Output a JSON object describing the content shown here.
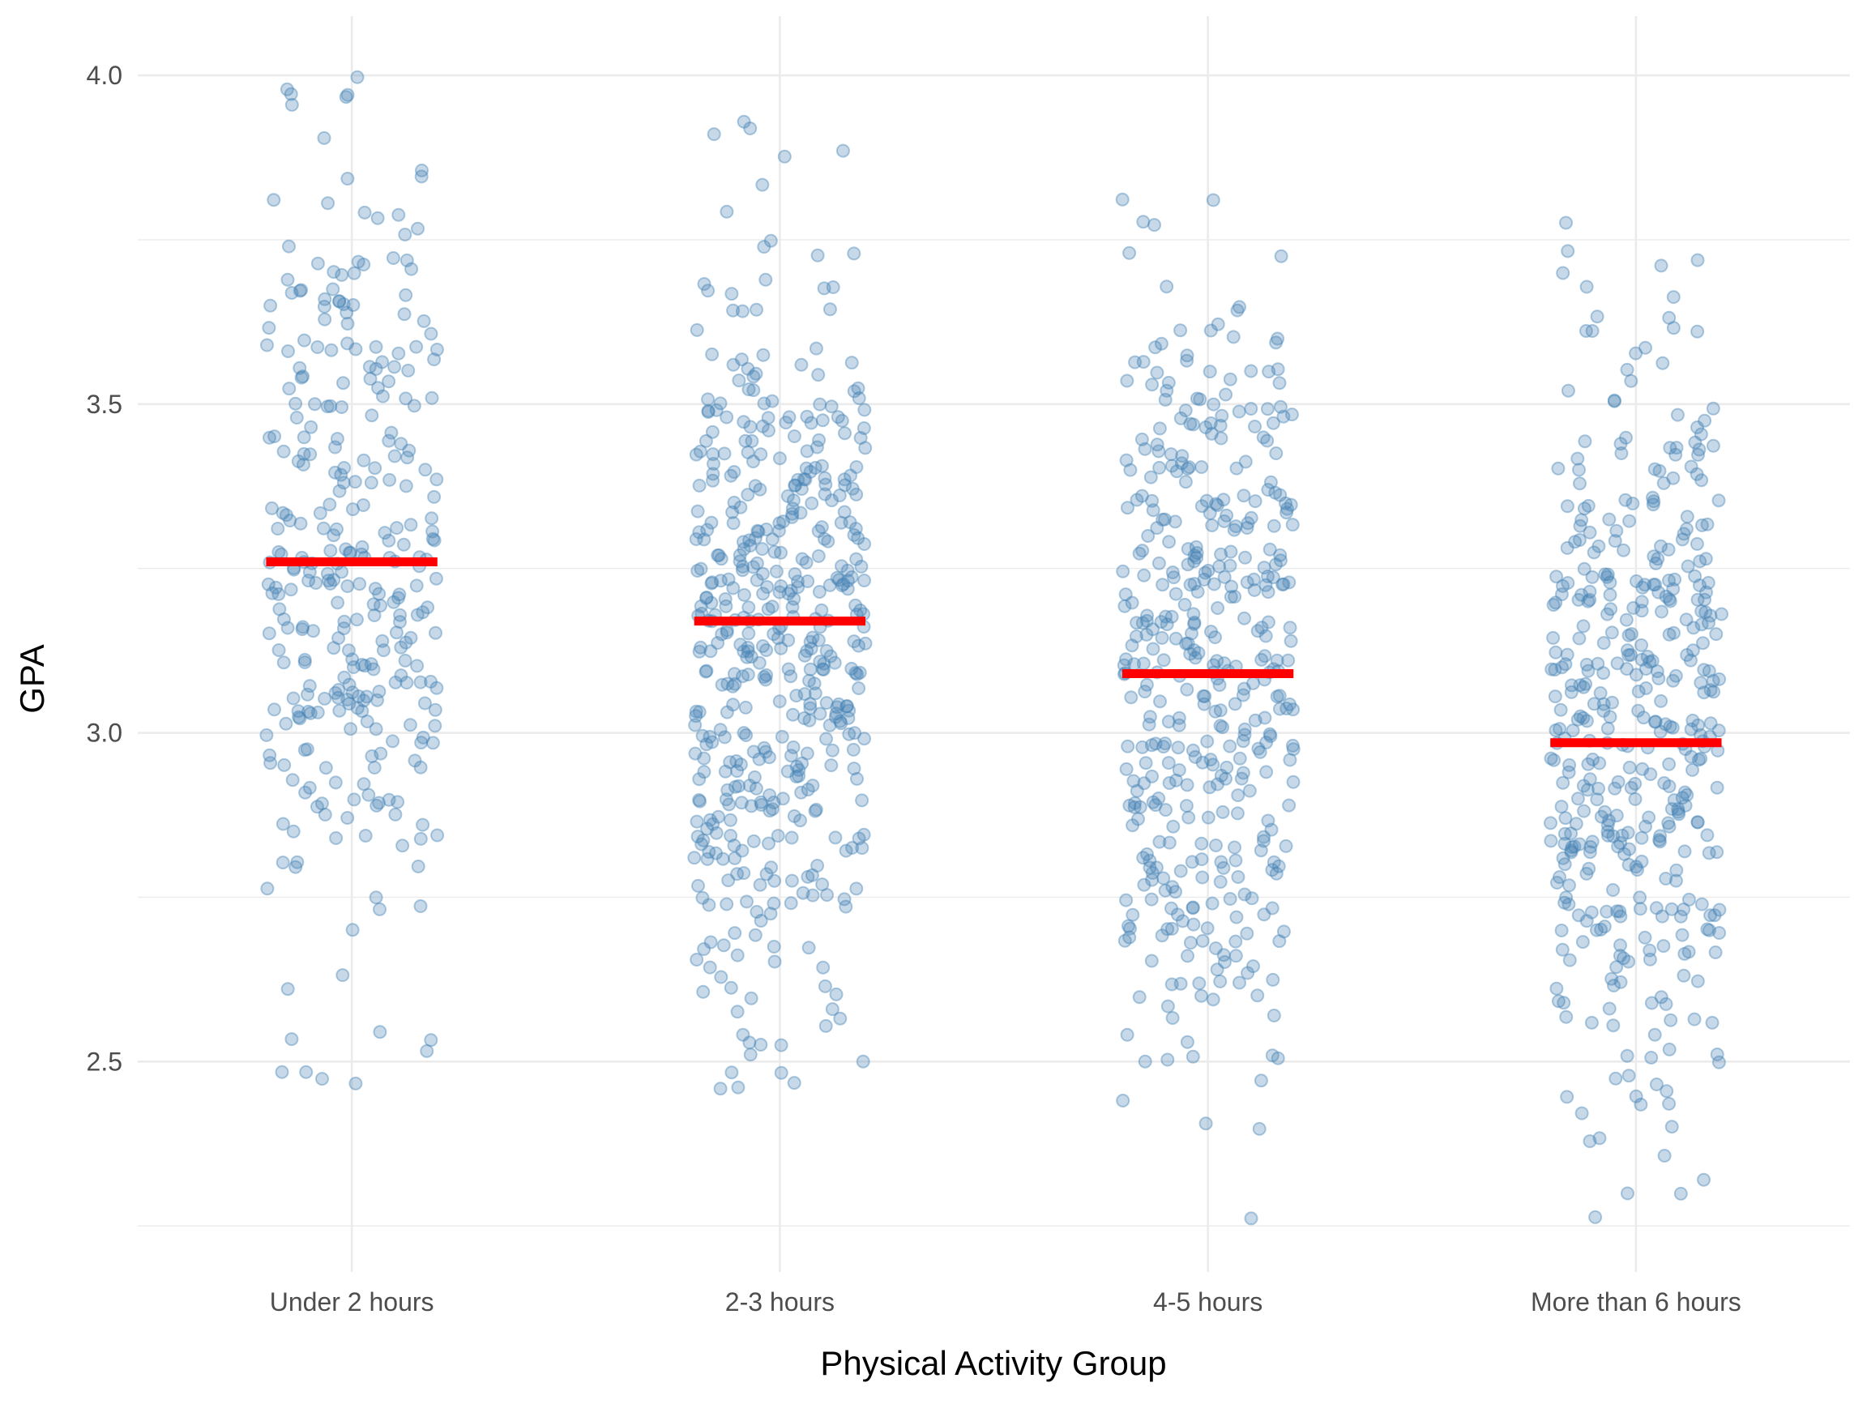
{
  "chart_data": {
    "type": "scatter",
    "subtype": "jitter-strip",
    "title": "",
    "xlabel": "Physical Activity Group",
    "ylabel": "GPA",
    "categories": [
      "Under 2 hours",
      "2-3 hours",
      "4-5 hours",
      "More than 6 hours"
    ],
    "ylim": [
      2.18,
      4.09
    ],
    "yticks": [
      2.5,
      3.0,
      3.5,
      4.0
    ],
    "ytick_labels": [
      "2.5",
      "3.0",
      "3.5",
      "4.0"
    ],
    "grid": true,
    "legend": "none",
    "point_color": "#4682b4",
    "mean_line_color": "#ff0000",
    "point_counts": [
      320,
      480,
      420,
      420
    ],
    "means": [
      3.26,
      3.17,
      3.09,
      2.985
    ],
    "ranges": [
      [
        2.44,
        4.0
      ],
      [
        2.45,
        3.93
      ],
      [
        2.22,
        3.82
      ],
      [
        2.22,
        3.78
      ]
    ],
    "series": [
      {
        "values": [
          3.26
        ],
        "sd": 0.3
      },
      {
        "values": [
          3.17
        ],
        "sd": 0.3
      },
      {
        "values": [
          3.09
        ],
        "sd": 0.3
      },
      {
        "values": [
          2.985
        ],
        "sd": 0.3
      }
    ]
  }
}
